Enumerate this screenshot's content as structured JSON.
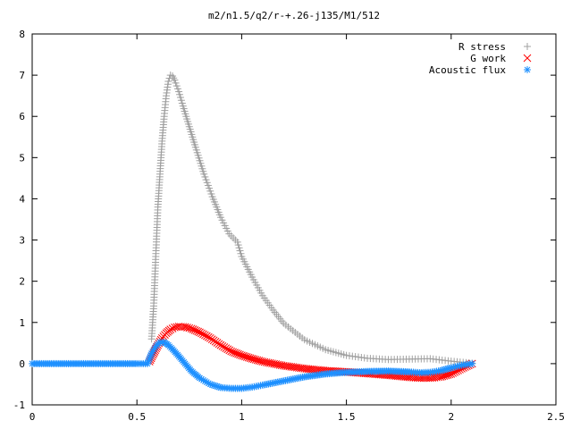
{
  "chart_data": {
    "type": "scatter",
    "title": "m2/n1.5/q2/r-+.26-j135/M1/512",
    "xlim": [
      0,
      2.5
    ],
    "ylim": [
      -1,
      8
    ],
    "x_ticks": [
      0,
      0.5,
      1,
      1.5,
      2,
      2.5
    ],
    "x_tick_labels": [
      "0",
      "0.5",
      "1",
      "1.5",
      "2",
      "2.5"
    ],
    "y_ticks": [
      -1,
      0,
      1,
      2,
      3,
      4,
      5,
      6,
      7,
      8
    ],
    "y_tick_labels": [
      "-1",
      "0",
      "1",
      "2",
      "3",
      "4",
      "5",
      "6",
      "7",
      "8"
    ],
    "grid": false,
    "legend_position": "top-right",
    "series": [
      {
        "name": "R stress",
        "marker": "plus",
        "color": "#a0a0a0",
        "x": [
          0.57,
          0.58,
          0.59,
          0.6,
          0.61,
          0.62,
          0.63,
          0.64,
          0.65,
          0.66,
          0.67,
          0.68,
          0.7,
          0.72,
          0.75,
          0.78,
          0.82,
          0.86,
          0.9,
          0.94,
          0.98,
          1.0,
          1.05,
          1.1,
          1.15,
          1.2,
          1.3,
          1.4,
          1.5,
          1.6,
          1.7,
          1.8,
          1.9,
          2.0,
          2.1
        ],
        "y": [
          0.6,
          1.4,
          2.6,
          3.8,
          4.6,
          5.4,
          6.0,
          6.5,
          6.85,
          7.0,
          6.98,
          6.88,
          6.6,
          6.25,
          5.75,
          5.25,
          4.6,
          4.05,
          3.55,
          3.15,
          2.95,
          2.6,
          2.1,
          1.65,
          1.3,
          0.98,
          0.58,
          0.34,
          0.2,
          0.13,
          0.1,
          0.11,
          0.12,
          0.06,
          0.01
        ]
      },
      {
        "name": "G work",
        "marker": "cross",
        "color": "#ff0000",
        "x": [
          0.56,
          0.58,
          0.6,
          0.62,
          0.64,
          0.66,
          0.68,
          0.7,
          0.73,
          0.76,
          0.8,
          0.85,
          0.9,
          0.95,
          1.0,
          1.05,
          1.1,
          1.2,
          1.3,
          1.4,
          1.5,
          1.6,
          1.7,
          1.8,
          1.85,
          1.9,
          1.95,
          2.0,
          2.05,
          2.1
        ],
        "y": [
          0.05,
          0.25,
          0.45,
          0.62,
          0.74,
          0.83,
          0.88,
          0.9,
          0.89,
          0.85,
          0.76,
          0.62,
          0.45,
          0.3,
          0.2,
          0.12,
          0.05,
          -0.05,
          -0.12,
          -0.17,
          -0.2,
          -0.24,
          -0.28,
          -0.33,
          -0.35,
          -0.35,
          -0.32,
          -0.25,
          -0.12,
          0.0
        ]
      },
      {
        "name": "Acoustic flux",
        "marker": "star",
        "color": "#1e90ff",
        "x": [
          0.0,
          0.1,
          0.2,
          0.3,
          0.4,
          0.5,
          0.55,
          0.57,
          0.59,
          0.61,
          0.63,
          0.65,
          0.67,
          0.7,
          0.73,
          0.76,
          0.8,
          0.85,
          0.9,
          0.95,
          1.0,
          1.05,
          1.1,
          1.2,
          1.3,
          1.4,
          1.5,
          1.6,
          1.7,
          1.8,
          1.85,
          1.9,
          1.95,
          2.0,
          2.05,
          2.1
        ],
        "y": [
          0.0,
          0.0,
          0.0,
          0.0,
          0.0,
          0.0,
          0.0,
          0.25,
          0.42,
          0.52,
          0.52,
          0.45,
          0.35,
          0.18,
          0.0,
          -0.18,
          -0.35,
          -0.5,
          -0.58,
          -0.6,
          -0.6,
          -0.57,
          -0.52,
          -0.42,
          -0.32,
          -0.25,
          -0.21,
          -0.19,
          -0.18,
          -0.2,
          -0.22,
          -0.21,
          -0.17,
          -0.1,
          -0.04,
          0.0
        ]
      }
    ]
  }
}
